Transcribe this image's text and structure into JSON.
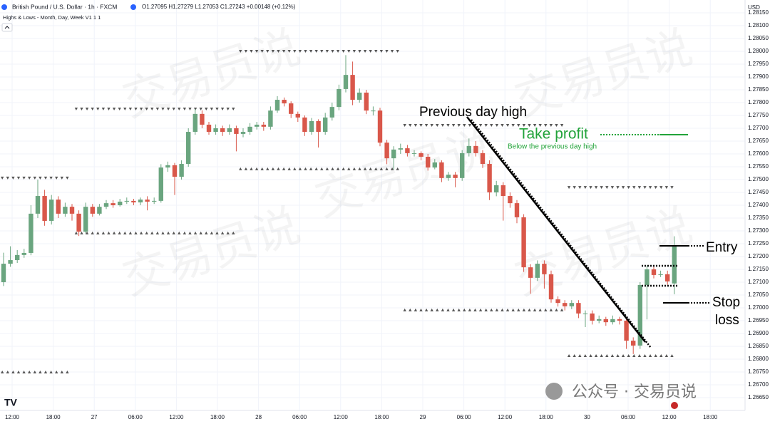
{
  "chart_data": {
    "type": "candlestick",
    "title": "British Pound / U.S. Dollar · 1h · FXCM",
    "ohlc_text": "O1.27095 H1.27279 L1.27053 C1.27243 +0.00148 (+0.12%)",
    "indicator": "Highs & Lows - Month, Day, Week V1 1 1",
    "currency": "USD",
    "watermark": "交易员说",
    "footer": "公众号 · 交易员说",
    "colors": {
      "up": "#6aa57f",
      "down": "#d9574a",
      "level": "#555555"
    },
    "open": [
      1.271,
      1.27172,
      1.27186,
      1.27206,
      1.27214,
      1.27367,
      1.27436,
      1.27339,
      1.27422,
      1.27367,
      1.27394,
      1.27367,
      1.27297,
      1.27394,
      1.27367,
      1.27394,
      1.27408,
      1.274,
      1.27414,
      1.27417,
      1.27411,
      1.27422,
      1.27414,
      1.27417,
      1.27547,
      1.27556,
      1.27511,
      1.27561,
      1.27686,
      1.27756,
      1.27714,
      1.27686,
      1.277,
      1.27686,
      1.277,
      1.27678,
      1.27686,
      1.27706,
      1.27714,
      1.27706,
      1.27769,
      1.27811,
      1.27797,
      1.27756,
      1.27742,
      1.27686,
      1.27728,
      1.27686,
      1.27742,
      1.27783,
      1.27853,
      1.27908,
      1.27811,
      1.27839,
      1.27769,
      1.27769,
      1.27644,
      1.27583,
      1.27617,
      1.27622,
      1.27603,
      1.27603,
      1.27589,
      1.27547,
      1.27567,
      1.27506,
      1.27519,
      1.27506,
      1.27603,
      1.27631,
      1.27603,
      1.27561,
      1.2745,
      1.27478,
      1.27436,
      1.27408,
      1.27353,
      1.27158,
      1.27117,
      1.27172,
      1.27131,
      1.27033,
      1.27019,
      1.27006,
      1.27019,
      1.26978,
      1.26978,
      1.2695,
      1.26956,
      1.26944,
      1.26956,
      1.2695,
      1.26872,
      1.26853,
      1.27089,
      1.2715,
      1.27128,
      1.27131,
      1.27095
    ],
    "high": [
      1.27215,
      1.2724,
      1.27225,
      1.2723,
      1.274,
      1.275,
      1.2746,
      1.2744,
      1.27435,
      1.2741,
      1.27405,
      1.2738,
      1.2741,
      1.27405,
      1.27405,
      1.2742,
      1.2742,
      1.27425,
      1.2743,
      1.27425,
      1.2743,
      1.27435,
      1.2743,
      1.2756,
      1.2757,
      1.27565,
      1.27575,
      1.277,
      1.27775,
      1.2777,
      1.27725,
      1.27715,
      1.2771,
      1.27715,
      1.2771,
      1.277,
      1.2772,
      1.27725,
      1.27725,
      1.27785,
      1.27825,
      1.2782,
      1.27805,
      1.27765,
      1.2775,
      1.2774,
      1.27735,
      1.2776,
      1.278,
      1.2787,
      1.27985,
      1.2796,
      1.27855,
      1.2785,
      1.27785,
      1.2778,
      1.27655,
      1.2763,
      1.2764,
      1.27635,
      1.27615,
      1.2761,
      1.276,
      1.2758,
      1.27575,
      1.2753,
      1.2753,
      1.27615,
      1.2766,
      1.2765,
      1.27615,
      1.27575,
      1.27495,
      1.2749,
      1.2745,
      1.2742,
      1.27365,
      1.2717,
      1.27185,
      1.27185,
      1.27145,
      1.27045,
      1.2703,
      1.2703,
      1.2703,
      1.2699,
      1.2699,
      1.2697,
      1.26965,
      1.2697,
      1.26965,
      1.2696,
      1.26885,
      1.271,
      1.27165,
      1.2716,
      1.27145,
      1.27145,
      1.27279
    ],
    "low": [
      1.27085,
      1.2716,
      1.27175,
      1.27195,
      1.27205,
      1.2735,
      1.2732,
      1.27325,
      1.2735,
      1.27355,
      1.2734,
      1.2728,
      1.2729,
      1.27355,
      1.2736,
      1.27385,
      1.2739,
      1.27395,
      1.27405,
      1.274,
      1.274,
      1.2738,
      1.27405,
      1.2741,
      1.2753,
      1.2744,
      1.275,
      1.2755,
      1.27675,
      1.277,
      1.27675,
      1.27675,
      1.2767,
      1.27675,
      1.2761,
      1.27665,
      1.27675,
      1.27695,
      1.2769,
      1.27695,
      1.2776,
      1.27785,
      1.2774,
      1.27725,
      1.2767,
      1.27675,
      1.27625,
      1.27675,
      1.2773,
      1.2777,
      1.2784,
      1.2779,
      1.278,
      1.27755,
      1.2775,
      1.2763,
      1.2756,
      1.2754,
      1.276,
      1.2759,
      1.2759,
      1.27575,
      1.27535,
      1.2754,
      1.2749,
      1.27495,
      1.2747,
      1.27495,
      1.2759,
      1.2759,
      1.27545,
      1.2742,
      1.27435,
      1.2734,
      1.2739,
      1.2733,
      1.2714,
      1.27055,
      1.27105,
      1.27075,
      1.2702,
      1.27005,
      1.2699,
      1.26995,
      1.2696,
      1.26925,
      1.26935,
      1.2694,
      1.2693,
      1.26935,
      1.26935,
      1.2684,
      1.2682,
      1.2684,
      1.26955,
      1.27115,
      1.2712,
      1.2709,
      1.27053
    ],
    "close": [
      1.27172,
      1.27186,
      1.27206,
      1.27214,
      1.27367,
      1.27436,
      1.27339,
      1.27422,
      1.27367,
      1.27394,
      1.27367,
      1.27297,
      1.27394,
      1.27367,
      1.27394,
      1.27408,
      1.274,
      1.27414,
      1.27417,
      1.27411,
      1.27422,
      1.27414,
      1.27417,
      1.27547,
      1.27556,
      1.27511,
      1.27561,
      1.27686,
      1.27756,
      1.27714,
      1.27686,
      1.277,
      1.27686,
      1.277,
      1.27678,
      1.27686,
      1.27706,
      1.27714,
      1.27706,
      1.27769,
      1.27811,
      1.27797,
      1.27756,
      1.27742,
      1.27686,
      1.27728,
      1.27686,
      1.27742,
      1.27783,
      1.27853,
      1.27908,
      1.27811,
      1.27839,
      1.27769,
      1.27769,
      1.27644,
      1.27583,
      1.27617,
      1.27622,
      1.27603,
      1.27603,
      1.27589,
      1.27547,
      1.27567,
      1.27506,
      1.27519,
      1.27506,
      1.27603,
      1.27631,
      1.27603,
      1.27561,
      1.2745,
      1.27478,
      1.27436,
      1.27408,
      1.27353,
      1.27158,
      1.27117,
      1.27172,
      1.27131,
      1.27033,
      1.27019,
      1.27006,
      1.27019,
      1.26978,
      1.26978,
      1.2695,
      1.26956,
      1.26944,
      1.26956,
      1.2695,
      1.26872,
      1.26853,
      1.27089,
      1.2715,
      1.27128,
      1.27131,
      1.27103,
      1.27243
    ],
    "levels": [
      {
        "high": 1.27506,
        "low": 1.2675
      },
      {
        "high": 1.27775,
        "low": 1.27292
      },
      {
        "high": 1.28,
        "low": 1.27542
      },
      {
        "high": 1.27711,
        "low": 1.26992
      },
      {
        "high": 1.27469,
        "low": 1.26814
      }
    ],
    "x_labels": [
      "12:00",
      "18:00",
      "27",
      "06:00",
      "12:00",
      "18:00",
      "28",
      "06:00",
      "12:00",
      "18:00",
      "29",
      "06:00",
      "12:00",
      "18:00",
      "30",
      "06:00",
      "12:00",
      "18:00"
    ],
    "ylim": [
      1.266,
      1.282
    ],
    "yticks": [
      {
        "value": 1.2665,
        "label": "1.26650"
      },
      {
        "value": 1.267,
        "label": "1.26700"
      },
      {
        "value": 1.2675,
        "label": "1.26750"
      },
      {
        "value": 1.268,
        "label": "1.26800"
      },
      {
        "value": 1.2685,
        "label": "1.26850"
      },
      {
        "value": 1.269,
        "label": "1.26900"
      },
      {
        "value": 1.2695,
        "label": "1.26950"
      },
      {
        "value": 1.27,
        "label": "1.27000"
      },
      {
        "value": 1.2705,
        "label": "1.27050"
      },
      {
        "value": 1.271,
        "label": "1.27100"
      },
      {
        "value": 1.2715,
        "label": "1.27150"
      },
      {
        "value": 1.272,
        "label": "1.27200"
      },
      {
        "value": 1.2725,
        "label": "1.27250"
      },
      {
        "value": 1.273,
        "label": "1.27300"
      },
      {
        "value": 1.2735,
        "label": "1.27350"
      },
      {
        "value": 1.274,
        "label": "1.27400"
      },
      {
        "value": 1.2745,
        "label": "1.27450"
      },
      {
        "value": 1.275,
        "label": "1.27500"
      },
      {
        "value": 1.2755,
        "label": "1.27550"
      },
      {
        "value": 1.276,
        "label": "1.27600"
      },
      {
        "value": 1.2765,
        "label": "1.27650"
      },
      {
        "value": 1.277,
        "label": "1.27700"
      },
      {
        "value": 1.2775,
        "label": "1.27750"
      },
      {
        "value": 1.278,
        "label": "1.27800"
      },
      {
        "value": 1.2785,
        "label": "1.27850"
      },
      {
        "value": 1.279,
        "label": "1.27900"
      },
      {
        "value": 1.2795,
        "label": "1.27950"
      },
      {
        "value": 1.28,
        "label": "1.28000"
      },
      {
        "value": 1.2805,
        "label": "1.28050"
      },
      {
        "value": 1.281,
        "label": "1.28100"
      },
      {
        "value": 1.2815,
        "label": "1.28150"
      }
    ],
    "annotations": {
      "previous_day_high": "Previous day high",
      "take_profit": "Take profit",
      "take_profit_note": "Below the previous day high",
      "entry": "Entry",
      "stop_1": "Stop",
      "stop_2": "loss"
    }
  }
}
